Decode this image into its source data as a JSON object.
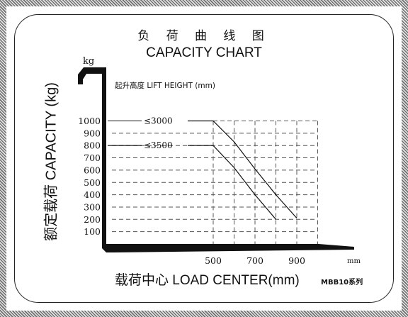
{
  "title_cn": "负 荷 曲 线 图",
  "title_en": "CAPACITY CHART",
  "unit_kg": "kg",
  "ylabel": "额定载荷 CAPACITY (kg)",
  "subtitle": "起升高度 LIFT HEIGHT (mm)",
  "xlabel": "载荷中心   LOAD CENTER(mm)",
  "series_note": "MBB10系列",
  "unit_mm": "mm",
  "chart_data": {
    "type": "line",
    "title": "CAPACITY CHART",
    "xlabel": "LOAD CENTER(mm)",
    "ylabel": "CAPACITY (kg)",
    "y_ticks": [
      100,
      200,
      300,
      400,
      500,
      600,
      700,
      800,
      900,
      1000
    ],
    "y_tick_labels": [
      "100",
      "200",
      "300",
      "400",
      "500",
      "600",
      "700",
      "800",
      "900",
      "1000"
    ],
    "x_ticks": [
      500,
      700,
      900
    ],
    "x_tick_labels": [
      "500",
      "700",
      "900"
    ],
    "ylim": [
      0,
      1100
    ],
    "xlim": [
      0,
      1000
    ],
    "grid": true,
    "series": [
      {
        "name": "≤3000",
        "x": [
          0,
          500,
          600,
          700,
          800,
          900
        ],
        "y": [
          1000,
          1000,
          830,
          610,
          400,
          210
        ]
      },
      {
        "name": "≤3500",
        "x": [
          0,
          500,
          600,
          700,
          800
        ],
        "y": [
          800,
          800,
          620,
          400,
          200
        ]
      }
    ]
  }
}
